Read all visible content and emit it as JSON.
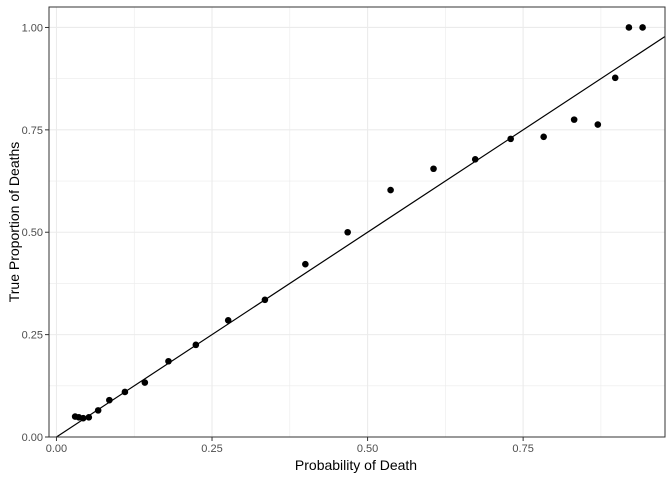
{
  "chart_data": {
    "type": "scatter",
    "title": "",
    "xlabel": "Probability of Death",
    "ylabel": "True Proportion of Deaths",
    "xlim": [
      -0.012,
      0.978
    ],
    "ylim": [
      0,
      1.05
    ],
    "x_ticks": [
      0,
      0.25,
      0.5,
      0.75
    ],
    "x_tick_labels": [
      "0.00",
      "0.25",
      "0.50",
      "0.75"
    ],
    "y_ticks": [
      0,
      0.25,
      0.5,
      0.75,
      1.0
    ],
    "y_tick_labels": [
      "0.00",
      "0.25",
      "0.50",
      "0.75",
      "1.00"
    ],
    "grid": true,
    "background": "#ffffff",
    "grid_color": "#ebebeb",
    "point_color": "#000000",
    "series": [
      {
        "points": [
          [
            0.03,
            0.05
          ],
          [
            0.036,
            0.048
          ],
          [
            0.043,
            0.046
          ],
          [
            0.052,
            0.048
          ],
          [
            0.067,
            0.065
          ],
          [
            0.085,
            0.09
          ],
          [
            0.11,
            0.11
          ],
          [
            0.142,
            0.133
          ],
          [
            0.18,
            0.185
          ],
          [
            0.224,
            0.225
          ],
          [
            0.276,
            0.285
          ],
          [
            0.335,
            0.335
          ],
          [
            0.4,
            0.422
          ],
          [
            0.468,
            0.5
          ],
          [
            0.537,
            0.603
          ],
          [
            0.606,
            0.655
          ],
          [
            0.673,
            0.678
          ],
          [
            0.73,
            0.728
          ],
          [
            0.783,
            0.733
          ],
          [
            0.832,
            0.775
          ],
          [
            0.87,
            0.763
          ],
          [
            0.898,
            0.877
          ],
          [
            0.92,
            1.0
          ],
          [
            0.942,
            1.0
          ]
        ]
      }
    ],
    "reference_line": {
      "type": "identity",
      "slope": 1,
      "intercept": 0
    }
  }
}
